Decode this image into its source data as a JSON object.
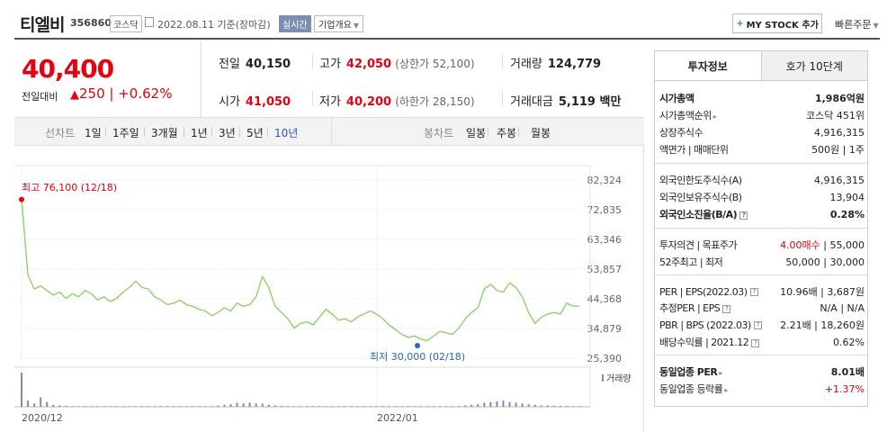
{
  "header": {
    "stock_name": "티엘비",
    "stock_code": "356860",
    "market": "코스닥",
    "date": "2022.08.11 기준(장마감)",
    "realtime_label": "실시간",
    "company_info_label": "기업개요",
    "mystock_label": "MY STOCK 추가",
    "quick_order_label": "빠른주문"
  },
  "price": {
    "current": "40,400",
    "change_label": "전일대비",
    "change_value": "250",
    "change_pct": "+0.62%"
  },
  "stats": {
    "prev_close_label": "전일",
    "prev_close": "40,150",
    "high_label": "고가",
    "high": "42,050",
    "upper_limit": "(상한가 52,100)",
    "volume_label": "거래량",
    "volume": "124,779",
    "open_label": "시가",
    "open": "41,050",
    "low_label": "저가",
    "low": "40,200",
    "lower_limit": "(하한가 28,150)",
    "amount_label": "거래대금",
    "amount": "5,119 백만"
  },
  "toolbar": {
    "line_chart_label": "선차트",
    "periods": [
      "1일",
      "1주일",
      "3개월",
      "1년",
      "3년",
      "5년",
      "10년"
    ],
    "active_period": "10년",
    "candle_label": "봉차트",
    "candles": [
      "일봉",
      "주봉",
      "월봉"
    ]
  },
  "chart_data": {
    "type": "line",
    "y_ticks": [
      "82,324",
      "72,835",
      "63,346",
      "53,857",
      "44,368",
      "34,879",
      "25,390"
    ],
    "ylim": [
      25390,
      82324
    ],
    "x_ticks": [
      "2020/12",
      "2022/01"
    ],
    "max_label": "최고 76,100 (12/18)",
    "min_label": "최저 30,000 (02/18)",
    "max_value": 76100,
    "min_value": 30000,
    "volume_label": "거래량",
    "series": [
      {
        "values": [
          76100,
          52000,
          47500,
          48500,
          47000,
          45500,
          46500,
          44500,
          46000,
          45000,
          47000,
          46000,
          44000,
          45000,
          43500,
          44500,
          46500,
          48000,
          50000,
          48000,
          47500,
          45000,
          44000,
          42500,
          43000,
          44000,
          42500,
          42000,
          41000,
          40500,
          39000,
          40000,
          41500,
          40500,
          43000,
          42000,
          42500,
          45000,
          51500,
          48000,
          42000,
          40000,
          38000,
          35000,
          36500,
          37000,
          36000,
          38500,
          41000,
          39500,
          37500,
          38000,
          37000,
          38500,
          39500,
          40500,
          39500,
          38000,
          36000,
          34500,
          33000,
          32000,
          32500,
          31500,
          31000,
          32500,
          34000,
          33500,
          33000,
          35000,
          38000,
          40000,
          41500,
          47500,
          49000,
          47000,
          46500,
          49500,
          48000,
          45000,
          40000,
          36500,
          38500,
          39500,
          40000,
          39500,
          43000,
          42000,
          42000
        ]
      }
    ],
    "volume": [
      100,
      18,
      10,
      28,
      14,
      6,
      4,
      3,
      2,
      2,
      2,
      2,
      2,
      2,
      2,
      2,
      2,
      2,
      2,
      2,
      2,
      2,
      2,
      2,
      2,
      2,
      2,
      2,
      2,
      2,
      2,
      4,
      6,
      8,
      12,
      10,
      12,
      10,
      9,
      6,
      4,
      3,
      2,
      2,
      2,
      2,
      2,
      2,
      2,
      2,
      2,
      2,
      2,
      2,
      2,
      2,
      2,
      2,
      2,
      2,
      2,
      2,
      2,
      2,
      2,
      2,
      2,
      2,
      2,
      2,
      4,
      6,
      8,
      12,
      14,
      16,
      18,
      14,
      12,
      10,
      8,
      6,
      4,
      4,
      3,
      3,
      2,
      2,
      2
    ]
  },
  "panel": {
    "tabs": [
      "투자정보",
      "호가 10단계"
    ],
    "rows": [
      {
        "label": "시가총액",
        "value": "1,986억원",
        "bold": true
      },
      {
        "label": "시가총액순위",
        "value": "코스닥 451위",
        "caret": true
      },
      {
        "label": "상장주식수",
        "value": "4,916,315"
      },
      {
        "label": "액면가 | 매매단위",
        "value": "500원 | 1주"
      },
      {
        "label": "외국인한도주식수(A)",
        "value": "4,916,315"
      },
      {
        "label": "외국인보유주식수(B)",
        "value": "13,904"
      },
      {
        "label": "외국인소진율(B/A)",
        "value": "0.28%",
        "bold": true,
        "help": true
      },
      {
        "label": "투자의견 | 목표주가",
        "value_red": "4.00매수",
        "value": " | 55,000"
      },
      {
        "label": "52주최고 | 최저",
        "value": "50,000 | 30,000"
      },
      {
        "label": "PER | EPS(2022.03)",
        "value": "10.96배 | 3,687원",
        "help": true
      },
      {
        "label": "추정PER | EPS",
        "value": "N/A | N/A",
        "help": true
      },
      {
        "label": "PBR | BPS (2022.03)",
        "value": "2.21배 | 18,260원",
        "help": true
      },
      {
        "label": "배당수익률 | 2021.12",
        "value": "0.62%",
        "help": true
      },
      {
        "label": "동일업종 PER",
        "value": "8.01배",
        "bold": true,
        "caret": true
      },
      {
        "label": "동일업종 등락률",
        "value": "+1.37%",
        "red": true,
        "caret": true
      }
    ]
  }
}
